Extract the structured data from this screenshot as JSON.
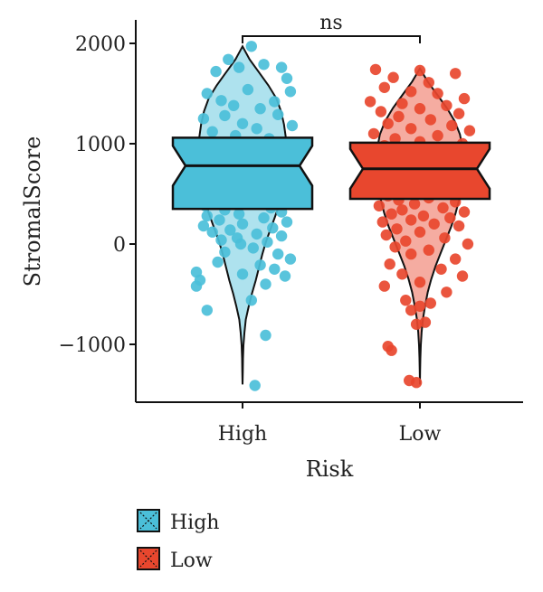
{
  "chart_data": {
    "type": "box-violin-jitter",
    "xlabel": "Risk",
    "ylabel": "StromalScore",
    "ylim": [
      -1500,
      2100
    ],
    "yticks": [
      -1000,
      0,
      1000,
      2000
    ],
    "ytick_labels": [
      "−1000",
      "0",
      "1000",
      "2000"
    ],
    "categories": [
      "High",
      "Low"
    ],
    "significance": "ns",
    "colors": {
      "High": "#4bbfd9",
      "Low": "#e8472e",
      "box_stroke": "#111111"
    },
    "series": [
      {
        "name": "High",
        "box": {
          "min": -1400,
          "q1": 350,
          "median": 780,
          "q3": 1060,
          "max": 1970
        },
        "points": [
          [
            0.92,
            1840
          ],
          [
            1.05,
            1970
          ],
          [
            0.98,
            1760
          ],
          [
            0.85,
            1720
          ],
          [
            1.12,
            1790
          ],
          [
            1.22,
            1760
          ],
          [
            1.25,
            1650
          ],
          [
            0.8,
            1500
          ],
          [
            0.88,
            1430
          ],
          [
            1.03,
            1540
          ],
          [
            1.18,
            1420
          ],
          [
            1.27,
            1520
          ],
          [
            0.95,
            1380
          ],
          [
            1.1,
            1350
          ],
          [
            0.78,
            1250
          ],
          [
            0.9,
            1280
          ],
          [
            1.0,
            1200
          ],
          [
            1.2,
            1290
          ],
          [
            1.28,
            1180
          ],
          [
            0.83,
            1120
          ],
          [
            1.08,
            1150
          ],
          [
            0.96,
            1080
          ],
          [
            1.15,
            1050
          ],
          [
            0.75,
            1000
          ],
          [
            1.25,
            980
          ],
          [
            0.88,
            950
          ],
          [
            1.02,
            920
          ],
          [
            1.18,
            900
          ],
          [
            0.79,
            860
          ],
          [
            0.93,
            840
          ],
          [
            1.1,
            820
          ],
          [
            1.24,
            800
          ],
          [
            0.85,
            770
          ],
          [
            0.99,
            750
          ],
          [
            1.2,
            730
          ],
          [
            0.77,
            700
          ],
          [
            1.06,
            680
          ],
          [
            1.27,
            660
          ],
          [
            0.91,
            640
          ],
          [
            1.14,
            620
          ],
          [
            0.82,
            600
          ],
          [
            1.0,
            580
          ],
          [
            1.23,
            560
          ],
          [
            0.88,
            540
          ],
          [
            1.09,
            520
          ],
          [
            0.76,
            500
          ],
          [
            1.19,
            480
          ],
          [
            0.95,
            460
          ],
          [
            1.26,
            440
          ],
          [
            0.84,
            420
          ],
          [
            1.04,
            400
          ],
          [
            0.79,
            380
          ],
          [
            1.16,
            360
          ],
          [
            0.9,
            340
          ],
          [
            1.22,
            320
          ],
          [
            0.98,
            300
          ],
          [
            0.8,
            280
          ],
          [
            1.12,
            260
          ],
          [
            0.87,
            240
          ],
          [
            1.25,
            220
          ],
          [
            1.0,
            200
          ],
          [
            0.78,
            180
          ],
          [
            1.17,
            160
          ],
          [
            0.93,
            140
          ],
          [
            0.83,
            120
          ],
          [
            1.08,
            100
          ],
          [
            1.22,
            80
          ],
          [
            0.97,
            60
          ],
          [
            0.88,
            40
          ],
          [
            1.14,
            20
          ],
          [
            0.99,
            0
          ],
          [
            1.06,
            -40
          ],
          [
            0.9,
            -80
          ],
          [
            1.2,
            -100
          ],
          [
            1.27,
            -150
          ],
          [
            0.86,
            -180
          ],
          [
            1.1,
            -210
          ],
          [
            1.18,
            -250
          ],
          [
            0.74,
            -280
          ],
          [
            0.76,
            -360
          ],
          [
            1.0,
            -300
          ],
          [
            1.24,
            -320
          ],
          [
            1.13,
            -400
          ],
          [
            0.8,
            -660
          ],
          [
            1.13,
            -910
          ],
          [
            1.07,
            -1410
          ],
          [
            0.74,
            -420
          ],
          [
            1.05,
            -560
          ]
        ]
      },
      {
        "name": "Low",
        "box": {
          "min": -1400,
          "q1": 450,
          "median": 750,
          "q3": 1010,
          "max": 1750
        },
        "points": [
          [
            1.75,
            1740
          ],
          [
            2.0,
            1730
          ],
          [
            2.2,
            1700
          ],
          [
            1.85,
            1660
          ],
          [
            2.05,
            1610
          ],
          [
            1.8,
            1560
          ],
          [
            1.95,
            1520
          ],
          [
            2.1,
            1500
          ],
          [
            2.25,
            1450
          ],
          [
            1.72,
            1420
          ],
          [
            1.9,
            1400
          ],
          [
            2.15,
            1380
          ],
          [
            2.0,
            1350
          ],
          [
            1.78,
            1320
          ],
          [
            2.22,
            1300
          ],
          [
            1.88,
            1270
          ],
          [
            2.06,
            1240
          ],
          [
            1.82,
            1200
          ],
          [
            2.18,
            1180
          ],
          [
            1.95,
            1150
          ],
          [
            2.28,
            1130
          ],
          [
            1.74,
            1100
          ],
          [
            2.1,
            1080
          ],
          [
            1.86,
            1050
          ],
          [
            2.0,
            1020
          ],
          [
            2.24,
            1000
          ],
          [
            1.8,
            980
          ],
          [
            2.12,
            960
          ],
          [
            1.92,
            940
          ],
          [
            2.27,
            920
          ],
          [
            1.76,
            900
          ],
          [
            2.04,
            880
          ],
          [
            1.88,
            860
          ],
          [
            2.2,
            840
          ],
          [
            1.98,
            820
          ],
          [
            1.73,
            800
          ],
          [
            2.15,
            780
          ],
          [
            1.84,
            760
          ],
          [
            2.08,
            740
          ],
          [
            2.26,
            720
          ],
          [
            1.9,
            700
          ],
          [
            1.78,
            680
          ],
          [
            2.02,
            660
          ],
          [
            2.18,
            640
          ],
          [
            1.86,
            620
          ],
          [
            1.96,
            600
          ],
          [
            2.23,
            580
          ],
          [
            1.75,
            560
          ],
          [
            2.1,
            540
          ],
          [
            1.93,
            520
          ],
          [
            2.29,
            500
          ],
          [
            1.82,
            480
          ],
          [
            2.05,
            460
          ],
          [
            1.88,
            440
          ],
          [
            2.2,
            420
          ],
          [
            1.97,
            400
          ],
          [
            1.77,
            380
          ],
          [
            2.13,
            360
          ],
          [
            1.9,
            340
          ],
          [
            2.25,
            320
          ],
          [
            1.84,
            300
          ],
          [
            2.02,
            280
          ],
          [
            2.17,
            260
          ],
          [
            1.95,
            240
          ],
          [
            1.79,
            220
          ],
          [
            2.08,
            200
          ],
          [
            2.22,
            180
          ],
          [
            1.87,
            150
          ],
          [
            2.0,
            120
          ],
          [
            1.81,
            90
          ],
          [
            2.14,
            60
          ],
          [
            1.92,
            30
          ],
          [
            2.27,
            0
          ],
          [
            1.86,
            -30
          ],
          [
            2.05,
            -60
          ],
          [
            1.95,
            -100
          ],
          [
            2.2,
            -150
          ],
          [
            1.83,
            -200
          ],
          [
            2.12,
            -250
          ],
          [
            1.9,
            -300
          ],
          [
            2.24,
            -320
          ],
          [
            2.0,
            -380
          ],
          [
            1.8,
            -420
          ],
          [
            2.15,
            -480
          ],
          [
            1.92,
            -560
          ],
          [
            2.0,
            -620
          ],
          [
            1.95,
            -660
          ],
          [
            2.03,
            -780
          ],
          [
            1.98,
            -800
          ],
          [
            1.82,
            -1020
          ],
          [
            1.84,
            -1060
          ],
          [
            1.94,
            -1360
          ],
          [
            1.98,
            -1380
          ],
          [
            2.06,
            -590
          ]
        ]
      }
    ]
  },
  "legend": {
    "items": [
      {
        "label": "High",
        "color": "#4bbfd9"
      },
      {
        "label": "Low",
        "color": "#e8472e"
      }
    ]
  }
}
